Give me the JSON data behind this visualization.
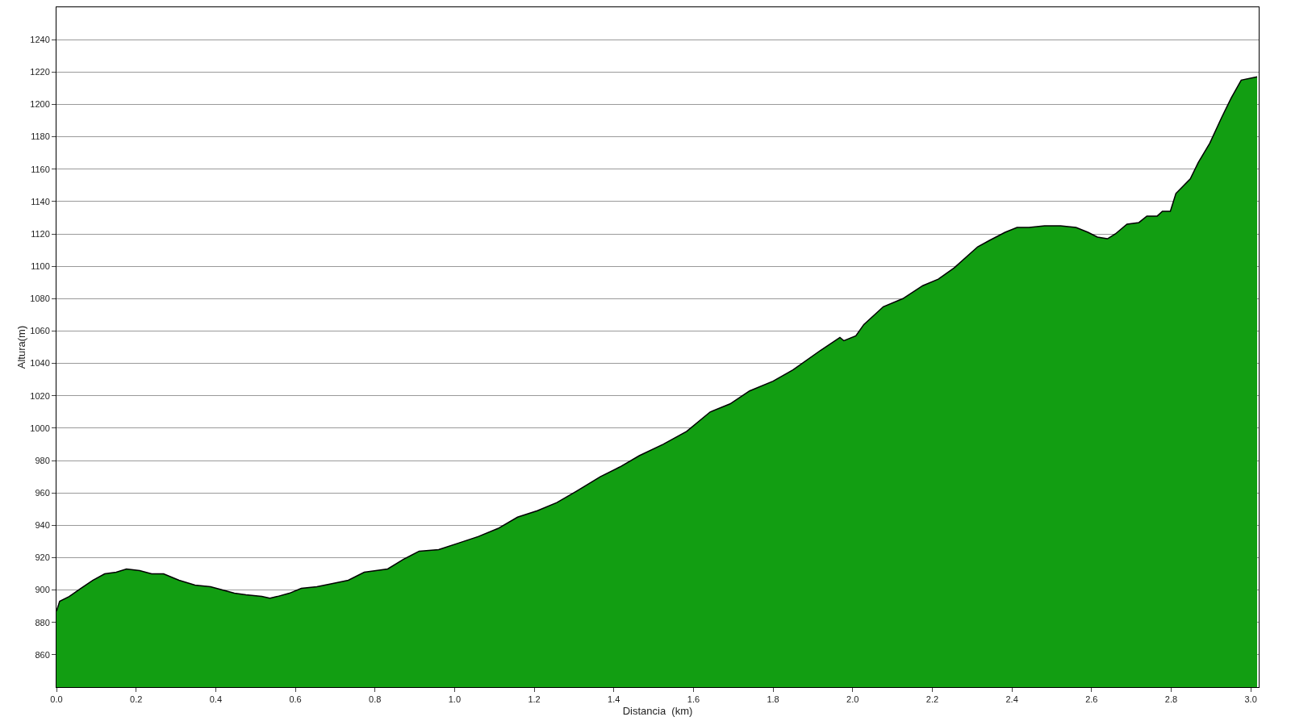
{
  "chart_data": {
    "type": "area",
    "xlabel": "Distancia  (km)",
    "ylabel": "Altura(m)",
    "x": [
      0,
      0.008,
      0.032,
      0.061,
      0.091,
      0.121,
      0.15,
      0.176,
      0.209,
      0.239,
      0.269,
      0.308,
      0.348,
      0.387,
      0.417,
      0.447,
      0.476,
      0.516,
      0.536,
      0.555,
      0.585,
      0.615,
      0.654,
      0.694,
      0.733,
      0.773,
      0.832,
      0.872,
      0.911,
      0.96,
      1.01,
      1.059,
      1.109,
      1.158,
      1.208,
      1.257,
      1.306,
      1.366,
      1.415,
      1.464,
      1.524,
      1.583,
      1.642,
      1.692,
      1.741,
      1.8,
      1.85,
      1.919,
      1.968,
      1.978,
      2.008,
      2.028,
      2.077,
      2.126,
      2.176,
      2.215,
      2.255,
      2.314,
      2.344,
      2.383,
      2.413,
      2.443,
      2.482,
      2.522,
      2.561,
      2.591,
      2.615,
      2.64,
      2.66,
      2.689,
      2.719,
      2.739,
      2.765,
      2.778,
      2.798,
      2.812,
      2.848,
      2.868,
      2.897,
      2.927,
      2.951,
      2.976,
      3.016
    ],
    "series": [
      {
        "color": "#129e12",
        "values": [
          887,
          893,
          896,
          901,
          906,
          910,
          911,
          913,
          912,
          910,
          910,
          906,
          903,
          902,
          900,
          898,
          897,
          896,
          895,
          896,
          898,
          901,
          902,
          904,
          906,
          911,
          913,
          919,
          924,
          925,
          929,
          933,
          938,
          945,
          949,
          954,
          961,
          970,
          976,
          983,
          990,
          998,
          1010,
          1015,
          1023,
          1029,
          1036,
          1048,
          1056,
          1054,
          1057,
          1064,
          1075,
          1080,
          1088,
          1092,
          1099,
          1112,
          1116,
          1121,
          1124,
          1124,
          1125,
          1125,
          1124,
          1121,
          1118,
          1117,
          1120,
          1126,
          1127,
          1131,
          1131,
          1134,
          1134,
          1145,
          1154,
          1164,
          1176,
          1192,
          1204,
          1215,
          1217
        ]
      }
    ],
    "xlim": [
      0,
      3.02
    ],
    "ylim": [
      840,
      1260
    ],
    "xticks": [
      {
        "value": 0,
        "label": "0.0"
      },
      0.2,
      0.4,
      0.6,
      0.8,
      {
        "value": 1,
        "label": "1.0"
      },
      1.2,
      1.4,
      1.6,
      1.8,
      {
        "value": 2,
        "label": "2.0"
      },
      2.2,
      2.4,
      2.6,
      2.8,
      {
        "value": 3,
        "label": "3.0"
      }
    ],
    "yticks": [
      860,
      880,
      900,
      920,
      940,
      960,
      980,
      1000,
      1020,
      1040,
      1060,
      1080,
      1100,
      1120,
      1140,
      1160,
      1180,
      1200,
      1220,
      1240
    ],
    "grid": "y",
    "legend": false
  }
}
